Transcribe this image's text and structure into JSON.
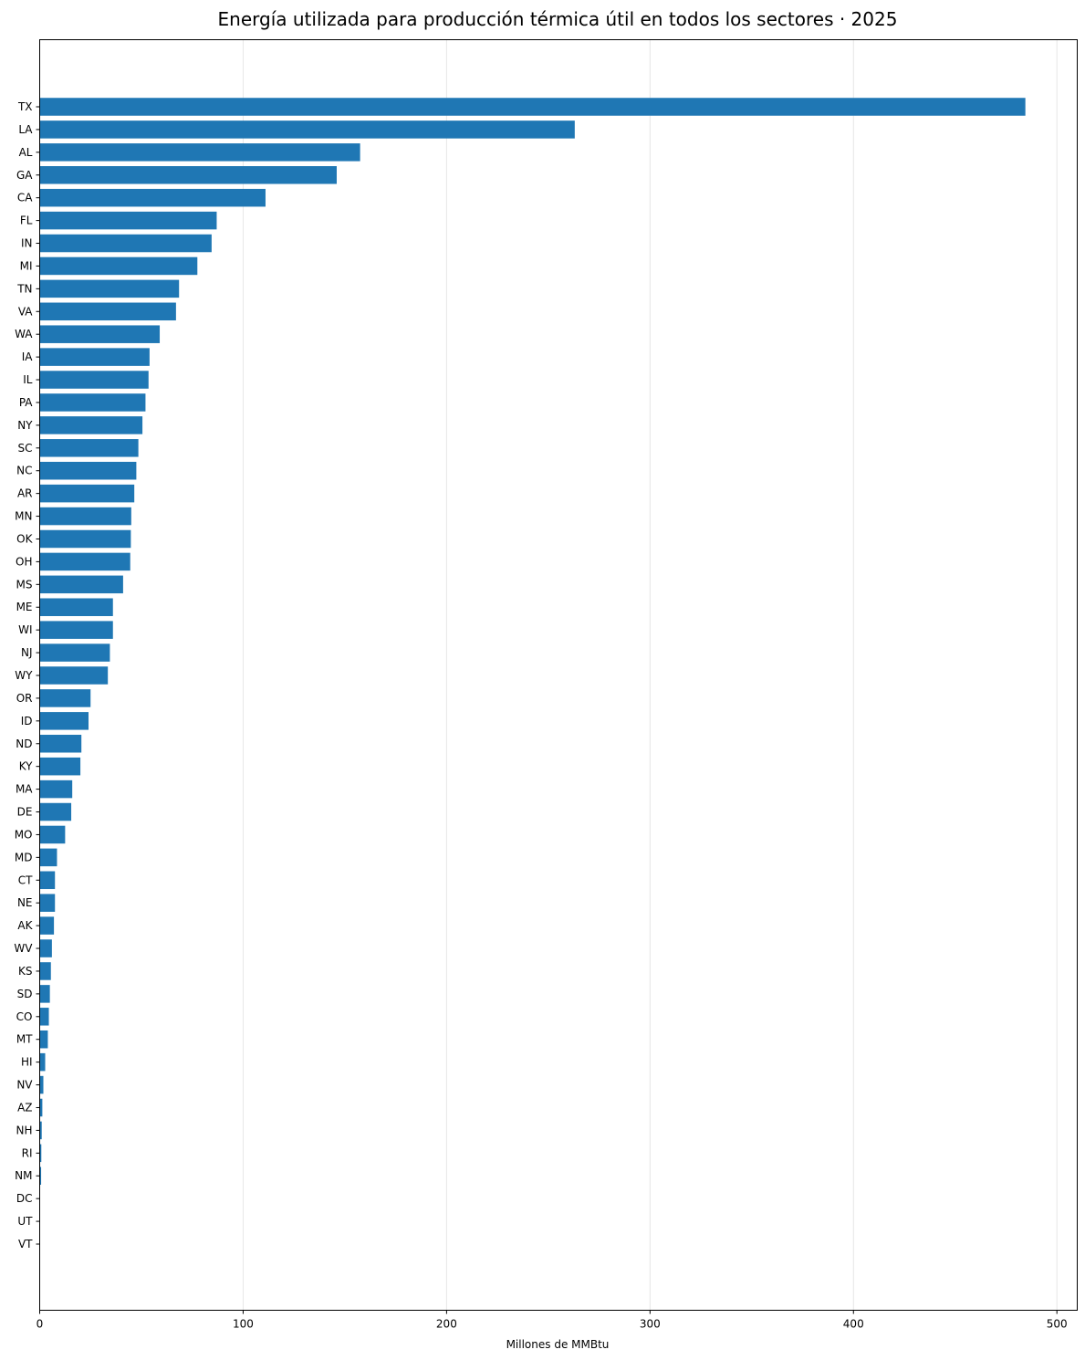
{
  "chart_data": {
    "type": "bar",
    "orientation": "horizontal",
    "title": "Energía utilizada para producción térmica útil en todos los sectores · 2025",
    "xlabel": "Millones de MMBtu",
    "ylabel": "",
    "xlim": [
      0,
      510
    ],
    "xticks": [
      0,
      100,
      200,
      300,
      400,
      500
    ],
    "grid": "x",
    "bar_color": "#1f77b4",
    "categories": [
      "TX",
      "LA",
      "AL",
      "GA",
      "CA",
      "FL",
      "IN",
      "MI",
      "TN",
      "VA",
      "WA",
      "IA",
      "IL",
      "PA",
      "NY",
      "SC",
      "NC",
      "AR",
      "MN",
      "OK",
      "OH",
      "MS",
      "ME",
      "WI",
      "NJ",
      "WY",
      "OR",
      "ID",
      "ND",
      "KY",
      "MA",
      "DE",
      "MO",
      "MD",
      "CT",
      "NE",
      "AK",
      "WV",
      "KS",
      "SD",
      "CO",
      "MT",
      "HI",
      "NV",
      "AZ",
      "NH",
      "RI",
      "NM",
      "DC",
      "UT",
      "VT"
    ],
    "values": [
      484.5,
      263.0,
      157.5,
      146.0,
      111.0,
      87.0,
      84.5,
      77.5,
      68.5,
      67.0,
      59.0,
      54.0,
      53.5,
      52.0,
      50.5,
      48.5,
      47.5,
      46.5,
      45.0,
      44.8,
      44.5,
      41.0,
      36.0,
      36.0,
      34.5,
      33.5,
      25.0,
      24.0,
      20.5,
      20.0,
      16.0,
      15.5,
      12.5,
      8.5,
      7.5,
      7.5,
      7.0,
      6.0,
      5.5,
      5.0,
      4.5,
      4.0,
      2.7,
      1.8,
      1.3,
      1.0,
      0.8,
      0.7,
      0.1,
      0.05,
      0.03
    ]
  }
}
